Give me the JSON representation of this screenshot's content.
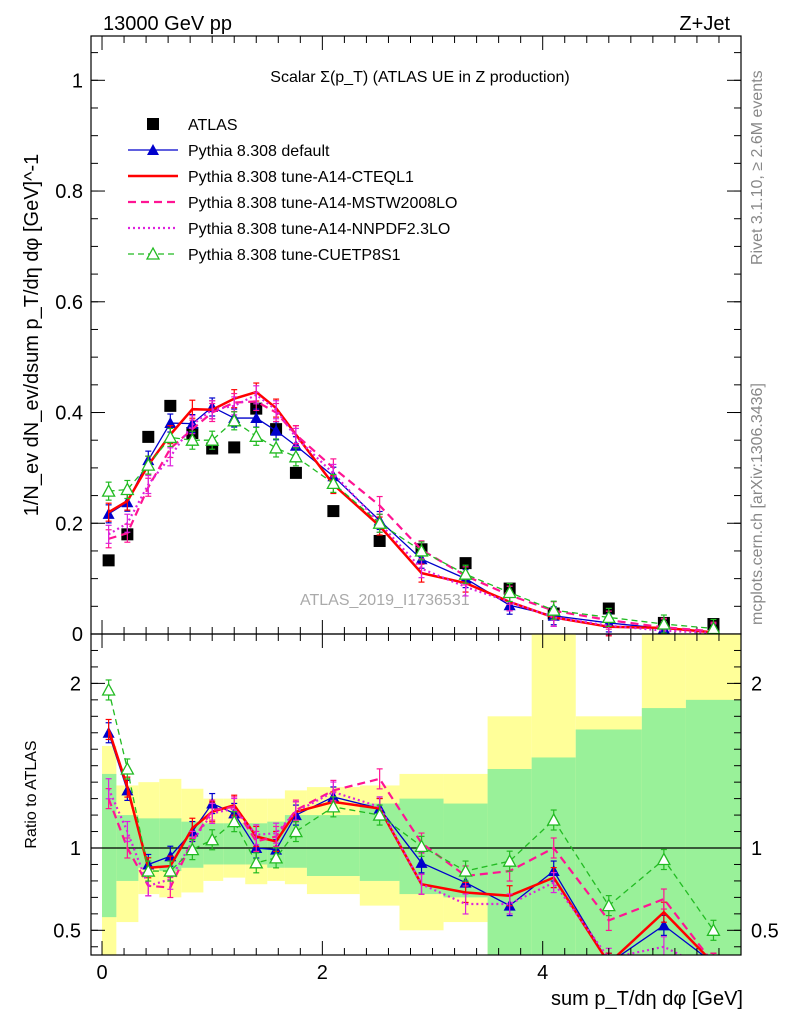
{
  "header": {
    "left": "13000 GeV pp",
    "right": "Z+Jet"
  },
  "side_texts": {
    "rivet": "Rivet 3.1.10, ≥ 2.6M events",
    "mcplots": "mcplots.cern.ch [arXiv:1306.3436]"
  },
  "watermark": "ATLAS_2019_I1736531",
  "colors": {
    "atlas": "#000000",
    "default": "#0000cc",
    "cteql1": "#ff0000",
    "mstw": "#ff1493",
    "nnpdf": "#dd22dd",
    "cuetp8s1": "#22bb22",
    "band_green": "#99f199",
    "band_yellow": "#ffff99"
  },
  "chart_data": [
    {
      "type": "line",
      "title": "Scalar Σ(p_T) (ATLAS UE in Z production)",
      "xlabel": "",
      "ylabel": "1/N_ev dN_ev/dsum p_T/dη dφ [GeV]^-1",
      "xlim": [
        -0.1,
        5.8
      ],
      "ylim": [
        0,
        1.08
      ],
      "yticks": [
        "0",
        "0.2",
        "0.4",
        "0.6",
        "0.8",
        "1"
      ],
      "legend_position": "top-left",
      "x": [
        0.06,
        0.23,
        0.42,
        0.62,
        0.82,
        1.0,
        1.2,
        1.4,
        1.58,
        1.76,
        2.1,
        2.52,
        2.9,
        3.3,
        3.7,
        4.1,
        4.6,
        5.1,
        5.55
      ],
      "series": [
        {
          "name": "ATLAS",
          "style": "marker-square",
          "values": [
            0.133,
            0.18,
            0.356,
            0.412,
            0.363,
            0.335,
            0.337,
            0.407,
            0.37,
            0.291,
            0.222,
            0.168,
            0.153,
            0.128,
            0.082,
            0.037,
            0.046,
            0.02,
            0.018
          ]
        },
        {
          "name": "Pythia 8.308 default",
          "style": "line-triangle",
          "values": [
            0.217,
            0.238,
            0.314,
            0.381,
            0.38,
            0.41,
            0.39,
            0.39,
            0.367,
            0.34,
            0.285,
            0.205,
            0.135,
            0.1,
            0.052,
            0.033,
            0.02,
            0.01,
            0.004
          ]
        },
        {
          "name": "Pythia 8.308 tune-A14-CTEQL1",
          "style": "solid",
          "values": [
            0.22,
            0.24,
            0.305,
            0.36,
            0.406,
            0.405,
            0.425,
            0.437,
            0.408,
            0.36,
            0.27,
            0.195,
            0.11,
            0.092,
            0.058,
            0.03,
            0.013,
            0.011,
            0.003
          ]
        },
        {
          "name": "Pythia 8.308 tune-A14-MSTW2008LO",
          "style": "dashed",
          "values": [
            0.172,
            0.182,
            0.265,
            0.335,
            0.37,
            0.4,
            0.418,
            0.42,
            0.4,
            0.36,
            0.3,
            0.232,
            0.152,
            0.105,
            0.07,
            0.042,
            0.025,
            0.012,
            0.005
          ]
        },
        {
          "name": "Pythia 8.308 tune-A14-NNPDF2.3LO",
          "style": "dotted",
          "values": [
            0.18,
            0.2,
            0.27,
            0.32,
            0.378,
            0.405,
            0.412,
            0.432,
            0.405,
            0.355,
            0.29,
            0.2,
            0.118,
            0.085,
            0.058,
            0.03,
            0.015,
            0.006,
            0.002
          ]
        },
        {
          "name": "Pythia 8.308 tune-CUETP8S1",
          "style": "dashed-open-triangle",
          "values": [
            0.258,
            0.261,
            0.305,
            0.355,
            0.35,
            0.35,
            0.385,
            0.357,
            0.336,
            0.32,
            0.272,
            0.2,
            0.15,
            0.108,
            0.075,
            0.043,
            0.03,
            0.018,
            0.01
          ]
        }
      ]
    },
    {
      "type": "line",
      "title": "",
      "xlabel": "sum p_T/dη dφ [GeV]",
      "ylabel": "Ratio to ATLAS",
      "xlim": [
        -0.1,
        5.8
      ],
      "ylim": [
        0.35,
        2.3
      ],
      "xticks": [
        "0",
        "2",
        "4"
      ],
      "yticks": [
        "0.5",
        "1",
        "2"
      ],
      "x_edges": [
        0.0,
        0.13,
        0.33,
        0.52,
        0.72,
        0.92,
        1.1,
        1.3,
        1.5,
        1.66,
        1.86,
        2.34,
        2.7,
        3.1,
        3.5,
        3.9,
        4.3,
        4.9,
        5.3,
        5.8
      ],
      "band_green": [
        [
          0.58,
          1.45
        ],
        [
          0.8,
          1.2
        ],
        [
          0.88,
          1.18
        ],
        [
          0.86,
          1.18
        ],
        [
          0.88,
          1.16
        ],
        [
          0.9,
          1.15
        ],
        [
          0.9,
          1.15
        ],
        [
          0.9,
          1.15
        ],
        [
          0.88,
          1.16
        ],
        [
          0.88,
          1.2
        ],
        [
          0.83,
          1.2
        ],
        [
          0.8,
          1.27
        ],
        [
          0.72,
          1.3
        ],
        [
          0.7,
          1.27
        ],
        [
          0.35,
          1.48
        ],
        [
          0.35,
          1.55
        ],
        [
          0.35,
          1.72
        ],
        [
          0.35,
          1.85
        ],
        [
          0.35,
          1.9
        ]
      ],
      "band_yellow": [
        [
          0.35,
          1.62
        ],
        [
          0.55,
          1.38
        ],
        [
          0.72,
          1.4
        ],
        [
          0.7,
          1.42
        ],
        [
          0.73,
          1.36
        ],
        [
          0.8,
          1.3
        ],
        [
          0.82,
          1.3
        ],
        [
          0.78,
          1.3
        ],
        [
          0.8,
          1.3
        ],
        [
          0.78,
          1.35
        ],
        [
          0.72,
          1.37
        ],
        [
          0.65,
          1.38
        ],
        [
          0.5,
          1.45
        ],
        [
          0.55,
          1.45
        ],
        [
          0.35,
          1.8
        ],
        [
          0.35,
          2.3
        ],
        [
          0.35,
          1.8
        ],
        [
          0.35,
          2.3
        ],
        [
          0.35,
          2.3
        ]
      ],
      "series": [
        {
          "name": "Pythia 8.308 default",
          "values": [
            1.7,
            1.35,
            0.9,
            0.95,
            1.1,
            1.27,
            1.21,
            1.0,
            0.99,
            1.2,
            1.31,
            1.24,
            0.91,
            0.79,
            0.65,
            0.86,
            0.3,
            0.53,
            0.3
          ]
        },
        {
          "name": "Pythia 8.308 tune-A14-CTEQL1",
          "values": [
            1.72,
            1.37,
            0.88,
            0.89,
            1.12,
            1.22,
            1.26,
            1.07,
            1.04,
            1.22,
            1.28,
            1.24,
            0.78,
            0.73,
            0.71,
            0.82,
            0.3,
            0.61,
            0.3
          ]
        },
        {
          "name": "Pythia 8.308 tune-A14-MSTW2008LO",
          "values": [
            1.3,
            1.0,
            0.77,
            0.76,
            1.04,
            1.23,
            1.25,
            1.04,
            1.07,
            1.23,
            1.35,
            1.42,
            1.03,
            0.83,
            0.86,
            1.0,
            0.56,
            0.69,
            0.3
          ]
        },
        {
          "name": "Pythia 8.308 tune-A14-NNPDF2.3LO",
          "values": [
            1.36,
            1.1,
            0.77,
            0.81,
            1.04,
            1.21,
            1.24,
            1.08,
            1.09,
            1.22,
            1.34,
            1.25,
            0.78,
            0.66,
            0.66,
            0.79,
            0.33,
            0.4,
            0.25
          ]
        },
        {
          "name": "Pythia 8.308 tune-CUETP8S1",
          "values": [
            1.96,
            1.48,
            0.86,
            0.86,
            0.99,
            1.05,
            1.16,
            0.91,
            0.94,
            1.1,
            1.25,
            1.2,
            1.01,
            0.86,
            0.92,
            1.17,
            0.65,
            0.93,
            0.5
          ]
        }
      ]
    }
  ]
}
